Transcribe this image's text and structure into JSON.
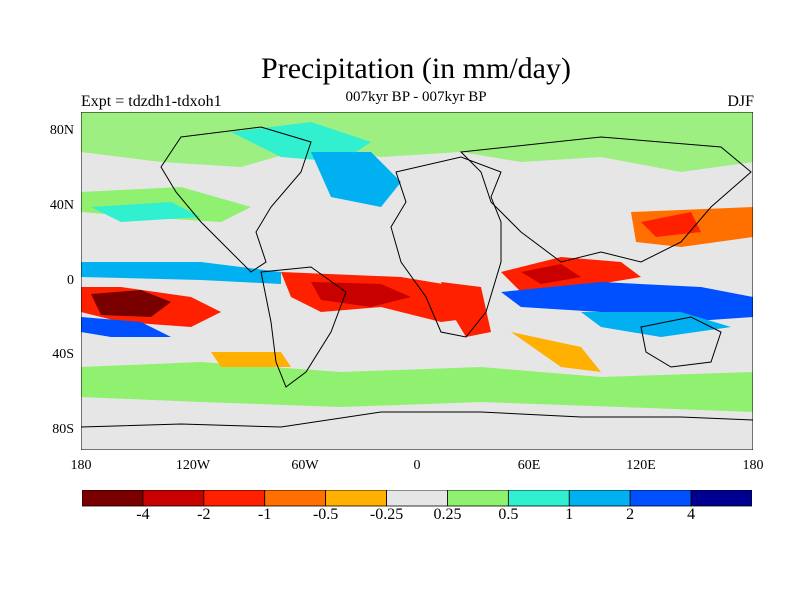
{
  "title": "Precipitation (in mm/day)",
  "subtitle": "007kyr BP - 007kyr BP",
  "left_label": "Expt = tdzdh1-tdxoh1",
  "right_label": "DJF",
  "lat_labels": [
    "80N",
    "40N",
    "0",
    "40S",
    "80S"
  ],
  "lon_labels": [
    "180",
    "120W",
    "60W",
    "0",
    "60E",
    "120E",
    "180"
  ],
  "legend": {
    "colors": [
      "#7a0000",
      "#c80000",
      "#ff2000",
      "#ff7000",
      "#ffb000",
      "#e6e6e6",
      "#90f070",
      "#30f0d0",
      "#00b0f0",
      "#0050ff",
      "#000090"
    ],
    "labels": [
      "-4",
      "-2",
      "-1",
      "-0.5",
      "-0.25",
      "0.25",
      "0.5",
      "1",
      "2",
      "4"
    ]
  },
  "colors": {
    "ocean_land_bg": "#e6e6e6",
    "coastline": "#000000"
  }
}
